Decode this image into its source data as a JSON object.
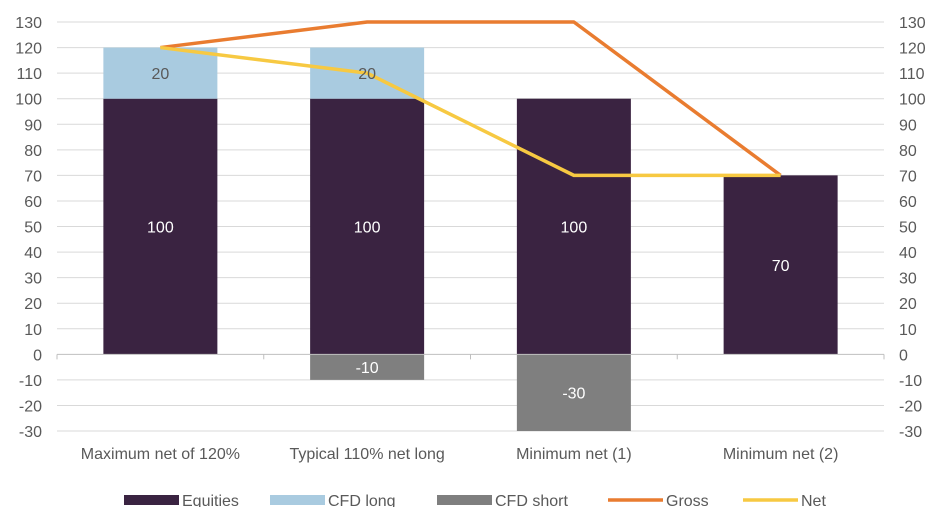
{
  "chart_data": {
    "type": "bar",
    "stacked": true,
    "categories": [
      "Maximum net of 120%",
      "Typical 110% net long",
      "Minimum net (1)",
      "Minimum net (2)"
    ],
    "ylim": [
      -30,
      130
    ],
    "yticks": [
      130,
      120,
      110,
      100,
      90,
      80,
      70,
      60,
      50,
      40,
      30,
      20,
      10,
      0,
      -10,
      -20,
      -30
    ],
    "secondary_axis": true,
    "grid": true,
    "legend_position": "bottom",
    "bar_series": [
      {
        "name": "Equities",
        "values": [
          100,
          100,
          100,
          70
        ],
        "labels": [
          "100",
          "100",
          "100",
          "70"
        ],
        "color": "#3a2341",
        "label_color": "#ffffff"
      },
      {
        "name": "CFD long",
        "values": [
          20,
          20,
          0,
          0
        ],
        "labels": [
          "20",
          "20",
          "",
          ""
        ],
        "color": "#a9cbe0",
        "label_color": "#595959"
      },
      {
        "name": "CFD short",
        "values": [
          0,
          -10,
          -30,
          0
        ],
        "labels": [
          "",
          "-10",
          "-30",
          ""
        ],
        "color": "#7f7f7f",
        "label_color": "#ffffff"
      }
    ],
    "line_series": [
      {
        "name": "Gross",
        "values": [
          120,
          130,
          130,
          70
        ],
        "color": "#e97c30"
      },
      {
        "name": "Net",
        "values": [
          120,
          110,
          70,
          70
        ],
        "color": "#f7c942"
      }
    ]
  }
}
